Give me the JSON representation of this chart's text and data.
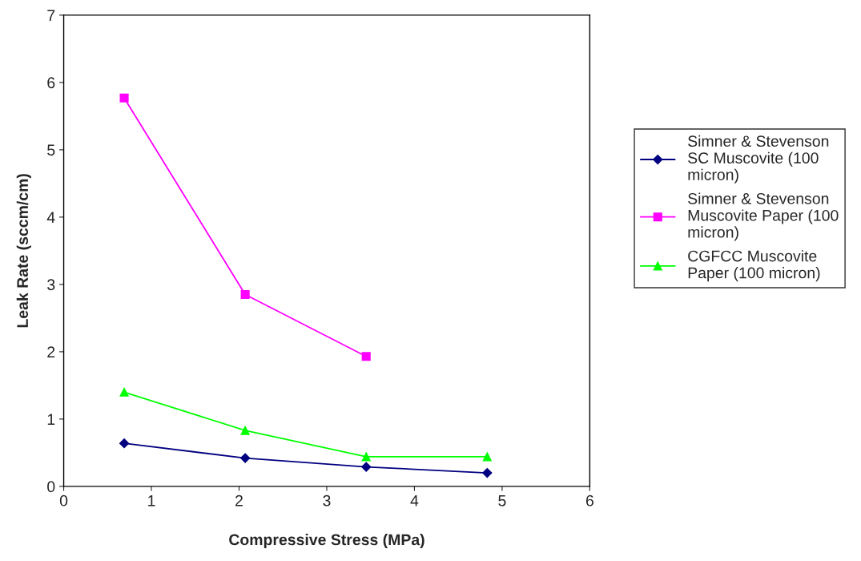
{
  "chart_data": {
    "type": "line",
    "xlabel": "Compressive Stress (MPa)",
    "ylabel": "Leak Rate (sccm/cm)",
    "x": [
      0.69,
      2.07,
      3.45,
      4.83
    ],
    "series": [
      {
        "name": "Simner & Stevenson\nSC Muscovite (100\nmicron)",
        "color": "#000080",
        "marker": "diamond",
        "values": [
          0.64,
          0.42,
          0.29,
          0.2
        ]
      },
      {
        "name": "Simner & Stevenson\nMuscovite Paper (100\nmicron)",
        "color": "#ff00ff",
        "marker": "square",
        "values": [
          5.77,
          2.85,
          1.93,
          null
        ]
      },
      {
        "name": "CGFCC Muscovite\nPaper (100 micron)",
        "color": "#00ff00",
        "marker": "triangle",
        "values": [
          1.4,
          0.83,
          0.44,
          0.44
        ]
      }
    ],
    "xlim": [
      0,
      6
    ],
    "xticks": [
      0,
      1,
      2,
      3,
      4,
      5,
      6
    ],
    "ylim": [
      0,
      7
    ],
    "yticks": [
      0,
      1,
      2,
      3,
      4,
      5,
      6,
      7
    ],
    "grid": false,
    "legend": "right"
  }
}
